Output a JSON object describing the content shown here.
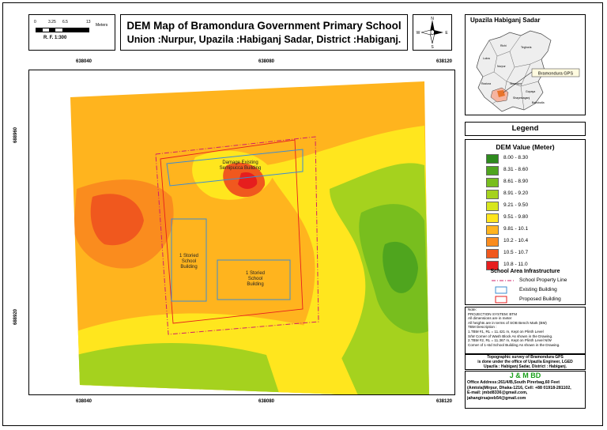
{
  "title": {
    "line1": "DEM Map of Bramondura Government Primary School",
    "line2": "Union :Nurpur, Upazila :Habiganj Sadar, District :Habiganj."
  },
  "scalebar": {
    "ticks": [
      "0",
      "3.25",
      "6.5",
      "13"
    ],
    "unit": "Meters",
    "rf": "R. F.   1:300"
  },
  "north_arrow": {
    "n": "N",
    "s": "S",
    "e": "E",
    "w": "W"
  },
  "inset": {
    "title": "Upazila Habiganj Sadar",
    "callout": "Bramondura GPS",
    "place_labels": [
      "Lukra",
      "Richi",
      "Teghoria",
      "Nurpur",
      "Raziura",
      "Shayestaganj",
      "Nizampur",
      "Gopaya",
      "Bahuballa"
    ]
  },
  "legend": {
    "header": "Legend",
    "title": "DEM Value (Meter)",
    "classes": [
      {
        "label": "8.00 - 8.30",
        "color": "#2e8b1e"
      },
      {
        "label": "8.31 - 8.60",
        "color": "#4fa51e"
      },
      {
        "label": "8.61 - 8.90",
        "color": "#78be1e"
      },
      {
        "label": "8.91 - 9.20",
        "color": "#a5d21e"
      },
      {
        "label": "9.21 - 9.50",
        "color": "#d7e61e"
      },
      {
        "label": "9.51 - 9.80",
        "color": "#ffe61e"
      },
      {
        "label": "9.81 - 10.1",
        "color": "#ffb41e"
      },
      {
        "label": "10.2 - 10.4",
        "color": "#fa8c1e"
      },
      {
        "label": "10.5 - 10.7",
        "color": "#f0581e"
      },
      {
        "label": "10.8 - 11.0",
        "color": "#e61e1e"
      }
    ],
    "infra_title": "School Area Infrastructure",
    "infra": [
      {
        "label": "School Property Line",
        "color": "#d0206a"
      },
      {
        "label": "Existing Building",
        "color": "#3c8cd2"
      },
      {
        "label": "Proposed Building",
        "color": "#e61e1e"
      }
    ]
  },
  "notes": [
    "Note:",
    "PROJECTION SYSTEM: BTM",
    "All dimensions are in meter",
    "All heights are in terms of SOB Bench Mark (BM)",
    "TBM Description :",
    "1.TBM #1, RL = 11.421 m,  Kept on Plinth Level",
    "S/W Corner of Wash Block As shown in the Drawing.",
    "2.TBM #2, RL = 11.367 m,  Kept on Plinth Level N/W",
    "Corner of 1-std School Building As shown in the Drawing."
  ],
  "survey": [
    "Topographic survey of Bramondura GPS",
    "is done under the office of Upazila Engineer, LGED",
    "Upazila : Habiganj Sadar, District : Habiganj."
  ],
  "office": {
    "name": "J & M BD",
    "lines": [
      "Office Address:261/4/B,South Pirerbag,60 Feet",
      "(Amtola)Mirpur, Dhaka-1216, Cell: +88 01918-281102,",
      "E-mail: jmbd8336@gmail.com,",
      "jahangirsajeeb54@gmail.com"
    ]
  },
  "map": {
    "x_ticks": [
      "638040",
      "638080",
      "638120"
    ],
    "y_ticks": [
      "688960",
      "688920"
    ],
    "labels": {
      "damaged": [
        "Damage Existing",
        "Semipucca Building"
      ],
      "school1": [
        "1 Storied",
        "School",
        "Building"
      ],
      "school2": [
        "1 Storied",
        "School",
        "Building"
      ]
    }
  }
}
